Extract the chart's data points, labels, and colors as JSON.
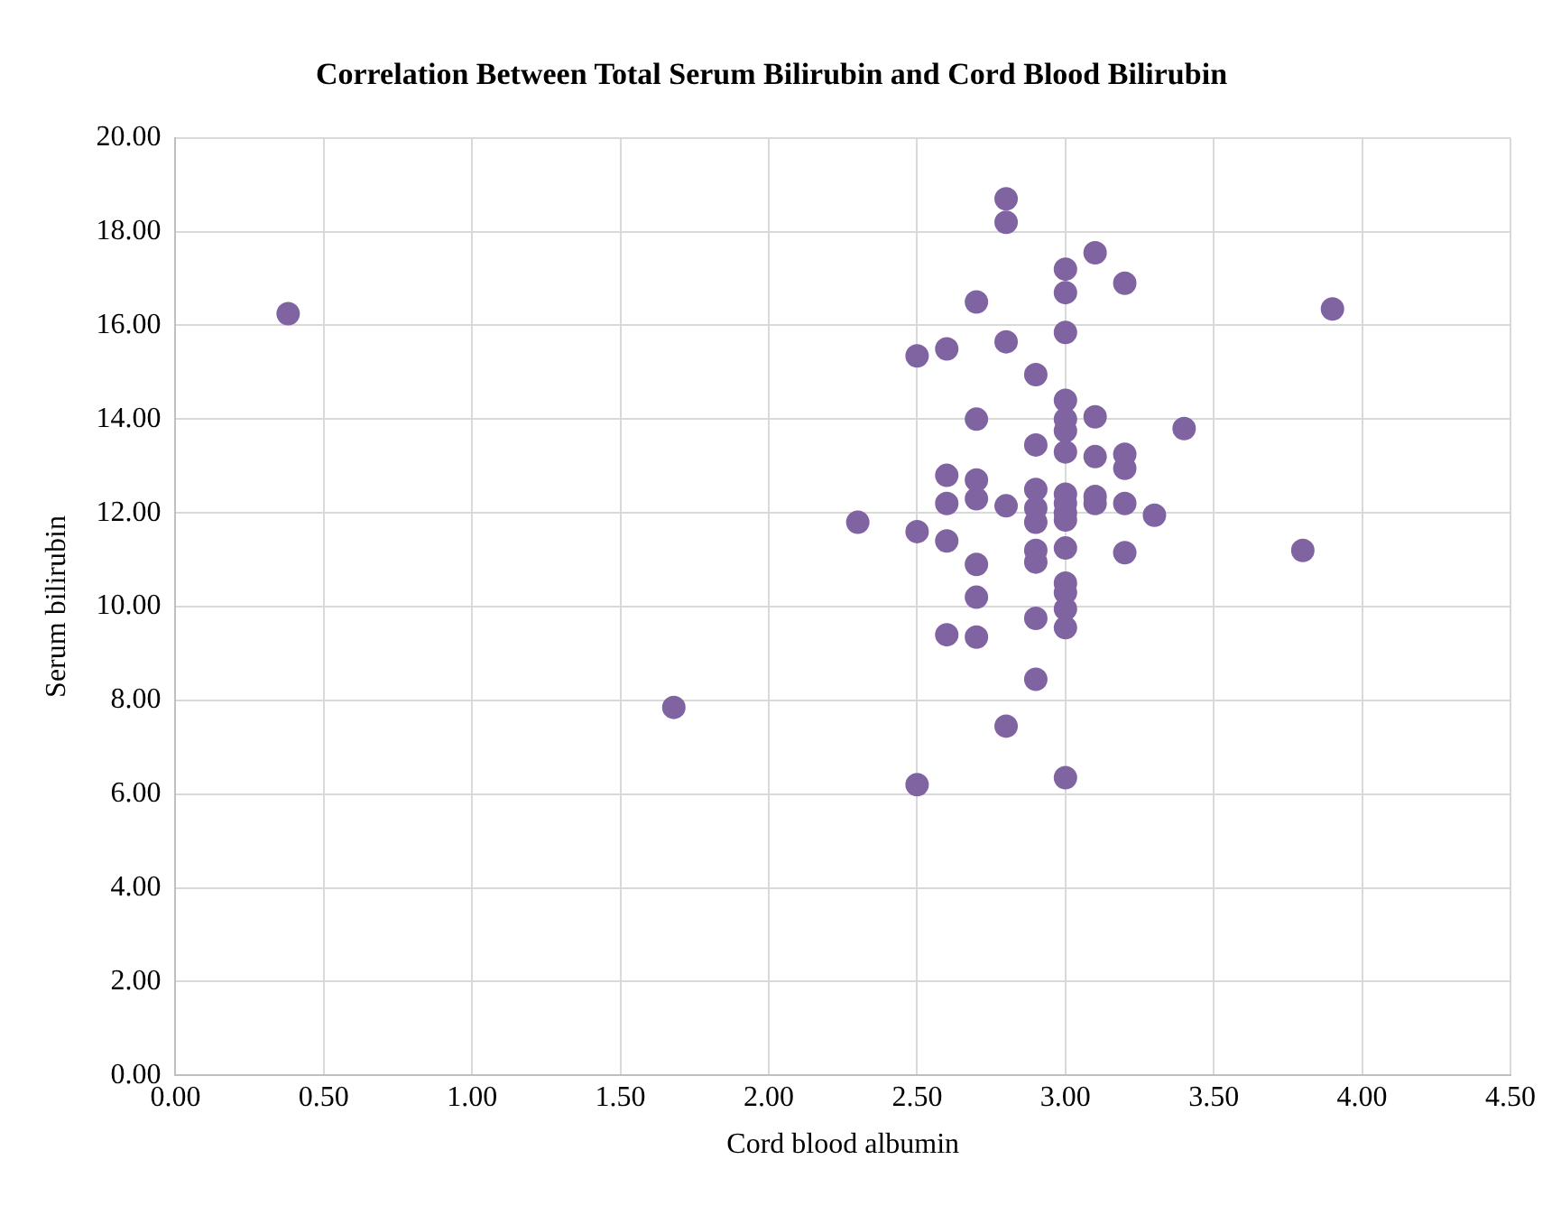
{
  "chart_data": {
    "type": "scatter",
    "title": "Correlation Between Total Serum Bilirubin and Cord Blood Bilirubin",
    "xlabel": "Cord blood albumin",
    "ylabel": "Serum bilirubin",
    "series": [
      {
        "color": "#8064a2",
        "x": [
          0.38,
          1.68,
          2.3,
          2.5,
          2.5,
          2.5,
          2.6,
          2.6,
          2.6,
          2.6,
          2.6,
          2.7,
          2.7,
          2.7,
          2.7,
          2.7,
          2.7,
          2.7,
          2.8,
          2.8,
          2.8,
          2.8,
          2.8,
          2.9,
          2.9,
          2.9,
          2.9,
          2.9,
          2.9,
          2.9,
          2.9,
          2.9,
          3.0,
          3.0,
          3.0,
          3.0,
          3.0,
          3.0,
          3.0,
          3.0,
          3.0,
          3.0,
          3.0,
          3.0,
          3.0,
          3.0,
          3.0,
          3.0,
          3.0,
          3.1,
          3.1,
          3.1,
          3.1,
          3.1,
          3.2,
          3.2,
          3.2,
          3.2,
          3.2,
          3.3,
          3.4,
          3.8,
          3.9
        ],
        "values": [
          16.25,
          7.85,
          11.8,
          11.6,
          15.35,
          6.2,
          15.5,
          12.8,
          12.2,
          11.4,
          9.4,
          16.5,
          14.0,
          12.7,
          12.3,
          10.9,
          10.2,
          9.35,
          18.7,
          18.2,
          15.65,
          12.15,
          7.45,
          14.95,
          13.45,
          12.5,
          12.1,
          11.8,
          11.2,
          10.95,
          9.75,
          8.45,
          17.2,
          16.7,
          15.85,
          14.4,
          14.0,
          13.75,
          13.3,
          12.4,
          12.2,
          12.0,
          11.85,
          11.25,
          10.5,
          10.3,
          9.95,
          9.55,
          6.35,
          17.55,
          14.05,
          13.2,
          12.35,
          12.2,
          16.9,
          13.25,
          12.95,
          12.2,
          11.15,
          11.95,
          13.8,
          11.2,
          16.35
        ]
      }
    ],
    "xlim": [
      0,
      4.5
    ],
    "xticks": [
      {
        "value": 0,
        "label": "0.00"
      },
      {
        "value": 0.5,
        "label": "0.50"
      },
      {
        "value": 1,
        "label": "1.00"
      },
      {
        "value": 1.5,
        "label": "1.50"
      },
      {
        "value": 2,
        "label": "2.00"
      },
      {
        "value": 2.5,
        "label": "2.50"
      },
      {
        "value": 3,
        "label": "3.00"
      },
      {
        "value": 3.5,
        "label": "3.50"
      },
      {
        "value": 4,
        "label": "4.00"
      },
      {
        "value": 4.5,
        "label": "4.50"
      }
    ],
    "ylim": [
      0,
      20
    ],
    "yticks": [
      {
        "value": 0,
        "label": "0.00"
      },
      {
        "value": 2,
        "label": "2.00"
      },
      {
        "value": 4,
        "label": "4.00"
      },
      {
        "value": 6,
        "label": "6.00"
      },
      {
        "value": 8,
        "label": "8.00"
      },
      {
        "value": 10,
        "label": "10.00"
      },
      {
        "value": 12,
        "label": "12.00"
      },
      {
        "value": 14,
        "label": "14.00"
      },
      {
        "value": 16,
        "label": "16.00"
      },
      {
        "value": 18,
        "label": "18.00"
      },
      {
        "value": 20,
        "label": "20.00"
      }
    ],
    "grid": true,
    "marker": "circle"
  }
}
